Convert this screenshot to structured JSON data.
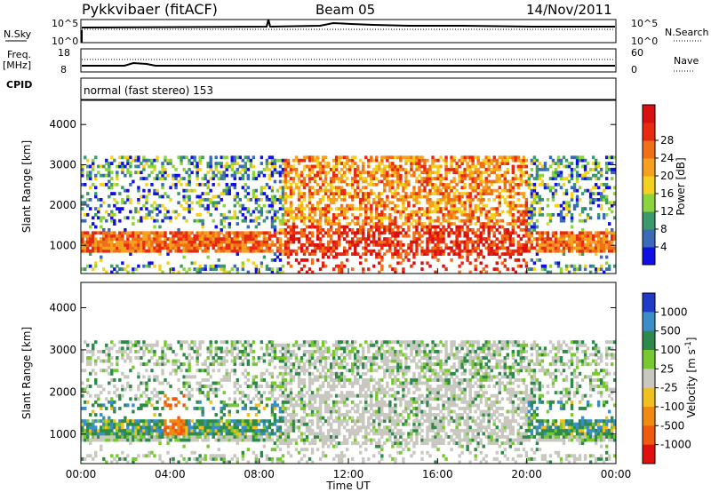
{
  "header": {
    "station": "Pykkvibaer (fitACF)",
    "beam": "Beam 05",
    "date": "14/Nov/2011"
  },
  "nsky_panel": {
    "label": "N.Sky",
    "left_ticks": [
      "10^5",
      "10^0"
    ],
    "right_ticks": [
      "10^5",
      "10^0"
    ],
    "right_label": "N.Search"
  },
  "freq_panel": {
    "label_line1": "Freq.",
    "label_line2": "[MHz]",
    "left_ticks": [
      "18",
      "8"
    ],
    "right_ticks": [
      "60",
      "0"
    ],
    "right_label": "Nave"
  },
  "cpid_panel": {
    "label": "CPID",
    "text": "normal (fast stereo) 153"
  },
  "chart_data": [
    {
      "type": "heatmap",
      "name": "power",
      "ylabel": "Slant Range [km]",
      "ylim": [
        300,
        4600
      ],
      "yticks": [
        1000,
        2000,
        3000,
        4000
      ],
      "xlim": [
        0,
        24
      ],
      "colorbar_label": "Power [dB]",
      "colorbar_ticks": [
        "4",
        "8",
        "12",
        "16",
        "20",
        "24",
        "28"
      ],
      "colorbar_colors": [
        "#1010e6",
        "#3a6ab8",
        "#3c9a6a",
        "#8cd43c",
        "#f4d020",
        "#f6a020",
        "#f07018",
        "#e82a10",
        "#d81010"
      ]
    },
    {
      "type": "heatmap",
      "name": "velocity",
      "ylabel": "Slant Range [km]",
      "ylim": [
        300,
        4600
      ],
      "yticks": [
        1000,
        2000,
        3000,
        4000
      ],
      "xlim": [
        0,
        24
      ],
      "xlabel": "Time UT",
      "xticks": [
        "00:00",
        "04:00",
        "08:00",
        "12:00",
        "16:00",
        "20:00",
        "00:00"
      ],
      "colorbar_label": "Velocity [m s",
      "colorbar_label_sup": "-1",
      "colorbar_label_end": "]",
      "colorbar_ticks": [
        "1000",
        "500",
        "100",
        "25",
        "-25",
        "-100",
        "-500",
        "-1000"
      ],
      "colorbar_colors": [
        "#1e3cc8",
        "#3c8ec8",
        "#2e8a4a",
        "#78c832",
        "#c8c8c0",
        "#f0c020",
        "#f08a10",
        "#f05a10",
        "#e01010"
      ]
    }
  ]
}
